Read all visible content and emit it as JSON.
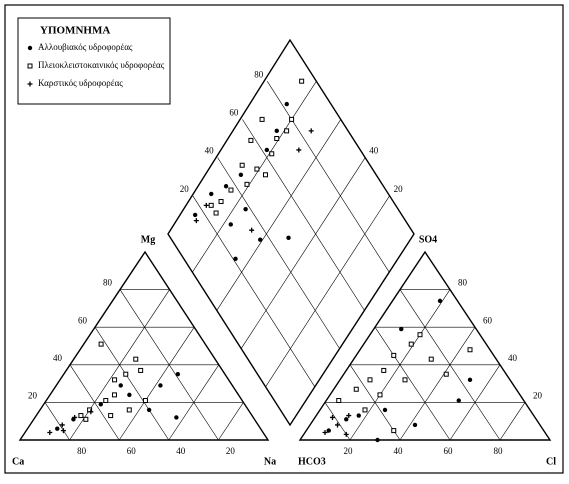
{
  "chart_data": {
    "type": "piper",
    "legend_title": "ΥΠΟΜΝΗΜΑ",
    "legend": "upper left",
    "lim": [
      0,
      100
    ],
    "cation_labels": {
      "ca": "Ca",
      "mg": "Mg",
      "na": "Na"
    },
    "anion_labels": {
      "hco3": "HCO3",
      "so4": "SO4",
      "cl": "Cl"
    },
    "cation_mg_ticks": [
      20,
      40,
      60,
      80
    ],
    "cation_ca_ticks": [
      80,
      60,
      40,
      20
    ],
    "anion_so4_ticks": [
      20,
      40,
      60,
      80
    ],
    "anion_cl_ticks": [
      20,
      40,
      60,
      80
    ],
    "diamond_left_ticks": [
      20,
      40,
      60,
      80
    ],
    "diamond_right_ticks": [
      20,
      40
    ],
    "grid": true,
    "series": [
      {
        "name": "Αλλουβιακός υδροφορέας",
        "color": "#000000",
        "marker": "circle",
        "cations": [
          [
            12,
            6
          ],
          [
            16,
            11
          ],
          [
            23,
            19
          ],
          [
            32,
            24
          ],
          [
            42,
            29
          ],
          [
            46,
            35
          ],
          [
            57,
            12
          ],
          [
            44,
            16
          ],
          [
            26,
            29
          ]
        ],
        "anions": [
          [
            9,
            5
          ],
          [
            13,
            11
          ],
          [
            17,
            13
          ],
          [
            31,
            0
          ],
          [
            26,
            16
          ],
          [
            42,
            8
          ],
          [
            53,
            21
          ],
          [
            52,
            32
          ],
          [
            11,
            59
          ],
          [
            19,
            74
          ]
        ],
        "diamond": [
          [
            94,
            16
          ],
          [
            93,
            28
          ],
          [
            89,
            36
          ],
          [
            86,
            45
          ],
          [
            82,
            62
          ],
          [
            83,
            71
          ],
          [
            86,
            82
          ],
          [
            50,
            48
          ],
          [
            61,
            36
          ],
          [
            66,
            21
          ],
          [
            75,
            38
          ],
          [
            77,
            28
          ]
        ]
      },
      {
        "name": "Πλειοκλειστοκαινικός υδροφορέας",
        "color": "#000000",
        "marker": "square",
        "cations": [
          [
            18,
            13
          ],
          [
            20,
            16
          ],
          [
            24,
            21
          ],
          [
            26,
            24
          ],
          [
            25,
            35
          ],
          [
            30,
            37
          ],
          [
            7,
            51
          ],
          [
            22,
            32
          ],
          [
            36,
            16
          ],
          [
            40,
            21
          ],
          [
            21,
            11
          ],
          [
            30,
            13
          ],
          [
            25,
            43
          ]
        ],
        "anions": [
          [
            5,
            21
          ],
          [
            9,
            27
          ],
          [
            12,
            32
          ],
          [
            15,
            37
          ],
          [
            15,
            45
          ],
          [
            19,
            51
          ],
          [
            20,
            56
          ],
          [
            31,
            43
          ],
          [
            41,
            35
          ],
          [
            18,
            16
          ],
          [
            20,
            24
          ],
          [
            26,
            32
          ],
          [
            44,
            48
          ],
          [
            35,
            5
          ]
        ],
        "diamond": [
          [
            90,
            25
          ],
          [
            87,
            30
          ],
          [
            86,
            37
          ],
          [
            81,
            45
          ],
          [
            81,
            53
          ],
          [
            76,
            55
          ],
          [
            79,
            63
          ],
          [
            81,
            69
          ],
          [
            79,
            75
          ],
          [
            80,
            80
          ],
          [
            86,
            94
          ],
          [
            92,
            68
          ],
          [
            91,
            58
          ],
          [
            88,
            48
          ],
          [
            86,
            25
          ]
        ]
      },
      {
        "name": "Καρστικός υδροφορέας",
        "color": "#000000",
        "marker": "plus",
        "cations": [
          [
            10,
            4
          ],
          [
            13,
            8
          ],
          [
            16,
            12
          ],
          [
            15,
            5
          ],
          [
            21,
            15
          ]
        ],
        "anions": [
          [
            8,
            4
          ],
          [
            11,
            8
          ],
          [
            13,
            13
          ],
          [
            7,
            12
          ],
          [
            17,
            3
          ]
        ],
        "diamond": [
          [
            92,
            15
          ],
          [
            92,
            23
          ],
          [
            69,
            75
          ],
          [
            69,
            85
          ],
          [
            67,
            35
          ]
        ]
      }
    ]
  }
}
